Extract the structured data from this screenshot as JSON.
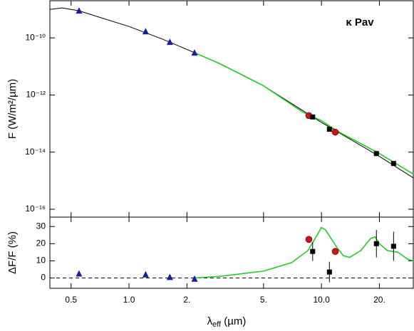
{
  "chart_data": [
    {
      "type": "scatter",
      "ylabel": "F (W/m²/µm)",
      "annotation": "κ Pav",
      "xlog": true,
      "ylog": true,
      "xlim": [
        0.388,
        30
      ],
      "ylim": [
        5.3e-17,
        2e-09
      ],
      "yticks": [
        {
          "value": 1e-10,
          "label": "10⁻¹⁰"
        },
        {
          "value": 1e-12,
          "label": "10⁻¹²"
        },
        {
          "value": 1e-14,
          "label": "10⁻¹⁴"
        },
        {
          "value": 1e-16,
          "label": "10⁻¹⁶"
        }
      ],
      "series": [
        {
          "mode": "line",
          "color": "#000000",
          "x": [
            0.39,
            0.45,
            0.55,
            0.7,
            1.0,
            1.5,
            2.2,
            3,
            5,
            10,
            20,
            30
          ],
          "values": [
            1e-09,
            1.12e-09,
            8.9e-10,
            5.3e-10,
            2.5e-10,
            8.9e-11,
            3e-11,
            1.2e-11,
            2.1e-12,
            1.1e-13,
            7.1e-15,
            1.26e-15
          ]
        },
        {
          "mode": "line",
          "color": "#22cc22",
          "x": [
            2.2,
            3,
            5,
            8,
            10,
            12,
            20,
            30
          ],
          "values": [
            3e-11,
            1.2e-11,
            2.1e-12,
            2.5e-13,
            1.26e-13,
            5.6e-14,
            8.9e-15,
            1.7e-15
          ]
        },
        {
          "mode": "marker",
          "marker": "triangle",
          "color": "#1a1aa8",
          "x": [
            0.55,
            1.22,
            1.63,
            2.19
          ],
          "values": [
            8.9e-10,
            1.67e-10,
            7.1e-11,
            3e-11
          ]
        },
        {
          "mode": "marker",
          "marker": "circle",
          "color": "#cc1414",
          "x": [
            8.6,
            11.8
          ],
          "values": [
            1.9e-13,
            5e-14
          ]
        },
        {
          "mode": "marker",
          "marker": "square",
          "color": "#000000",
          "x": [
            9.0,
            11.0,
            19.3,
            23.7
          ],
          "values": [
            1.7e-13,
            6.3e-14,
            8.9e-15,
            4e-15
          ]
        }
      ]
    },
    {
      "type": "scatter",
      "ylabel": "ΔF/F (%)",
      "xlabel": {
        "symbol": "λ",
        "sub": "eff",
        "unit": " (µm)"
      },
      "xlog": true,
      "ylog": false,
      "xlim": [
        0.388,
        30
      ],
      "ylim": [
        -6,
        35.5
      ],
      "hline": 0,
      "xticks": [
        0.5,
        {
          "value": 1,
          "label": "1.0"
        },
        {
          "value": 2,
          "label": "2."
        },
        {
          "value": 5,
          "label": "5."
        },
        {
          "value": 10,
          "label": "10.0"
        },
        {
          "value": 20,
          "label": "20."
        }
      ],
      "yticks": [
        0,
        10,
        20,
        30
      ],
      "series": [
        {
          "mode": "line",
          "color": "#22cc22",
          "x": [
            2.2,
            3,
            5,
            7,
            8.5,
            9.5,
            10,
            10.5,
            12,
            13,
            14,
            16,
            18,
            19,
            20,
            22,
            25,
            28,
            30
          ],
          "values": [
            0,
            1,
            4,
            9,
            16,
            25,
            29.5,
            28,
            18,
            13,
            12,
            16,
            23,
            24,
            20,
            16,
            15,
            11,
            10
          ]
        },
        {
          "mode": "marker",
          "marker": "triangle",
          "color": "#1a1aa8",
          "x": [
            0.55,
            1.22,
            1.63,
            2.19
          ],
          "values": [
            2.5,
            2,
            0.5,
            -0.5
          ]
        },
        {
          "mode": "marker",
          "marker": "circle",
          "color": "#cc1414",
          "x": [
            8.6,
            11.8
          ],
          "values": [
            22.5,
            15.5
          ],
          "errors": [
            2,
            2
          ]
        },
        {
          "mode": "marker",
          "marker": "square",
          "color": "#000000",
          "x": [
            9.0,
            11.0,
            19.3,
            23.7
          ],
          "values": [
            15.5,
            3.5,
            20,
            18.5
          ],
          "errors": [
            5.5,
            6,
            8,
            8.5
          ]
        }
      ]
    }
  ]
}
